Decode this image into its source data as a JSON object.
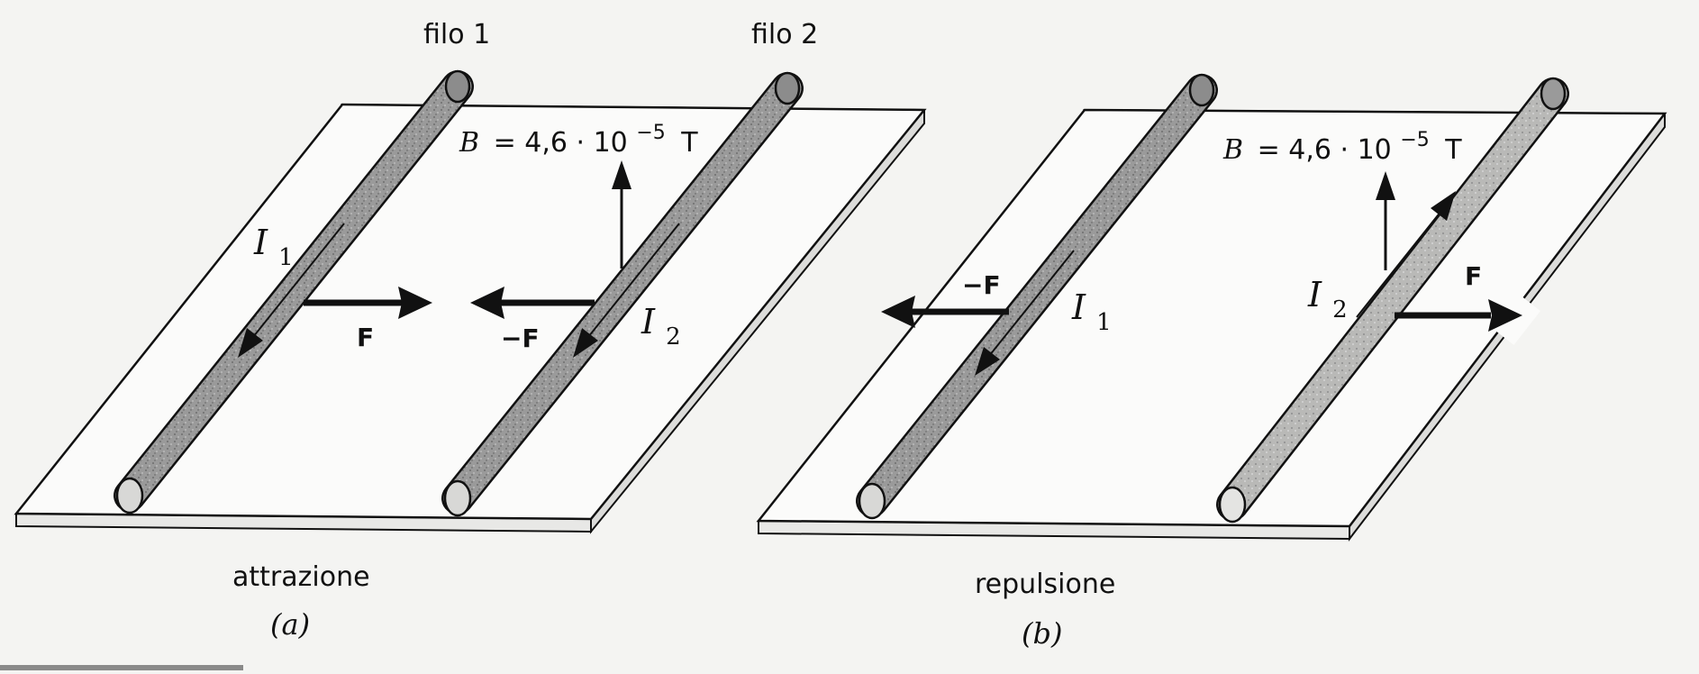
{
  "panel_a": {
    "wire1_label": "filo 1",
    "wire2_label": "filo 2",
    "field_label_var": "B",
    "field_label_value": "= 4,6 · 10",
    "field_label_exp": "−5",
    "field_label_unit": "T",
    "current1_var": "I",
    "current1_sub": "1",
    "current2_var": "I",
    "current2_sub": "2",
    "force1_label": "F",
    "force2_label": "−F",
    "caption": "attrazione",
    "panel_letter": "(a)"
  },
  "panel_b": {
    "field_label_var": "B",
    "field_label_value": "= 4,6 · 10",
    "field_label_exp": "−5",
    "field_label_unit": "T",
    "current1_var": "I",
    "current1_sub": "1",
    "current2_var": "I",
    "current2_sub": "2",
    "force1_label": "−F",
    "force2_label": "F",
    "caption": "repulsione",
    "panel_letter": "(b)"
  }
}
